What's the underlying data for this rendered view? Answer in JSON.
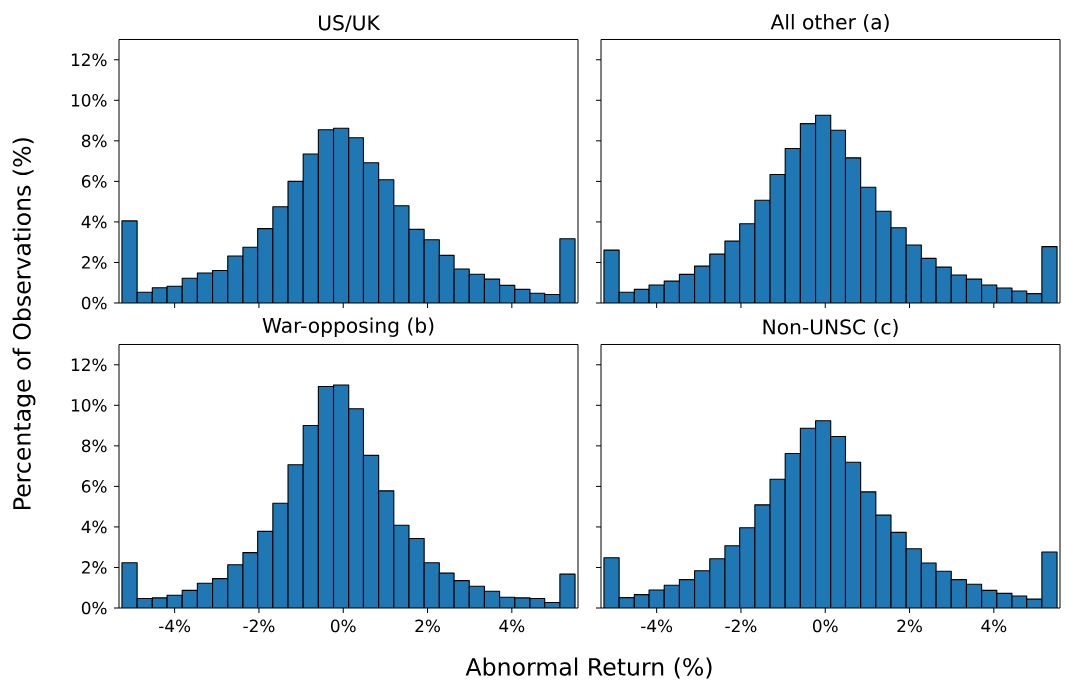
{
  "chart_data": [
    {
      "type": "histogram",
      "title": "US/UK",
      "ylabel": "Percentage of Observations (%)",
      "bins": [
        -5.25,
        -4.89,
        -4.53,
        -4.18,
        -3.82,
        -3.46,
        -3.1,
        -2.74,
        -2.38,
        -2.03,
        -1.67,
        -1.31,
        -0.95,
        -0.59,
        -0.23,
        0.13,
        0.48,
        0.84,
        1.2,
        1.56,
        1.92,
        2.28,
        2.63,
        2.99,
        3.35,
        3.71,
        4.07,
        4.43,
        4.78,
        5.14,
        5.5
      ],
      "values": [
        4.05,
        0.53,
        0.75,
        0.83,
        1.22,
        1.48,
        1.6,
        2.32,
        2.75,
        3.67,
        4.75,
        6.0,
        7.35,
        8.55,
        8.62,
        8.15,
        6.92,
        6.08,
        4.8,
        3.63,
        3.12,
        2.35,
        1.68,
        1.42,
        1.18,
        0.87,
        0.67,
        0.48,
        0.42,
        3.17
      ],
      "color": "#1f77b4",
      "xlim": [
        -5.32,
        5.57
      ],
      "xticks": [
        -4,
        -2,
        0,
        2,
        4
      ],
      "ylim": [
        0,
        13
      ],
      "yticks": [
        {
          "value": 0,
          "label": "0%"
        },
        {
          "value": 2,
          "label": "2%"
        },
        {
          "value": 4,
          "label": "4%"
        },
        {
          "value": 6,
          "label": "6%"
        },
        {
          "value": 8,
          "label": "8%"
        },
        {
          "value": 10,
          "label": "10%"
        },
        {
          "value": 12,
          "label": "12%"
        }
      ],
      "tick_labels": "y"
    },
    {
      "type": "histogram",
      "title": "All other (a)",
      "bins": [
        -5.25,
        -4.89,
        -4.53,
        -4.18,
        -3.82,
        -3.46,
        -3.1,
        -2.74,
        -2.38,
        -2.03,
        -1.67,
        -1.31,
        -0.95,
        -0.59,
        -0.23,
        0.13,
        0.48,
        0.84,
        1.2,
        1.56,
        1.92,
        2.28,
        2.63,
        2.99,
        3.35,
        3.71,
        4.07,
        4.43,
        4.78,
        5.14,
        5.5
      ],
      "values": [
        2.61,
        0.53,
        0.67,
        0.89,
        1.08,
        1.41,
        1.82,
        2.41,
        3.05,
        3.91,
        5.07,
        6.34,
        7.62,
        8.85,
        9.26,
        8.52,
        7.16,
        5.71,
        4.53,
        3.71,
        2.86,
        2.2,
        1.77,
        1.38,
        1.18,
        0.89,
        0.74,
        0.59,
        0.46,
        2.78
      ],
      "color": "#1f77b4",
      "xlim": [
        -5.32,
        5.57
      ],
      "xticks": [
        -4,
        -2,
        0,
        2,
        4
      ],
      "ylim": [
        0,
        13
      ],
      "yticks": [
        0,
        2,
        4,
        6,
        8,
        10,
        12
      ],
      "tick_labels": false
    },
    {
      "type": "histogram",
      "title": "War-opposing (b)",
      "xlabel": "Abnormal Return (%)",
      "bins": [
        -5.25,
        -4.89,
        -4.53,
        -4.18,
        -3.82,
        -3.46,
        -3.1,
        -2.74,
        -2.38,
        -2.03,
        -1.67,
        -1.31,
        -0.95,
        -0.59,
        -0.23,
        0.13,
        0.48,
        0.84,
        1.2,
        1.56,
        1.92,
        2.28,
        2.63,
        2.99,
        3.35,
        3.71,
        4.07,
        4.43,
        4.78,
        5.14,
        5.5
      ],
      "values": [
        2.23,
        0.47,
        0.5,
        0.63,
        0.87,
        1.22,
        1.45,
        2.13,
        2.73,
        3.78,
        5.17,
        7.07,
        9.0,
        10.93,
        11.0,
        9.83,
        7.53,
        5.78,
        4.08,
        3.43,
        2.23,
        1.72,
        1.35,
        1.07,
        0.83,
        0.53,
        0.5,
        0.47,
        0.27,
        1.67
      ],
      "color": "#1f77b4",
      "xlim": [
        -5.32,
        5.57
      ],
      "xticks": [
        {
          "value": -4,
          "label": "-4%"
        },
        {
          "value": -2,
          "label": "-2%"
        },
        {
          "value": 0,
          "label": "0%"
        },
        {
          "value": 2,
          "label": "2%"
        },
        {
          "value": 4,
          "label": "4%"
        }
      ],
      "ylim": [
        0,
        13
      ],
      "yticks": [
        {
          "value": 0,
          "label": "0%"
        },
        {
          "value": 2,
          "label": "2%"
        },
        {
          "value": 4,
          "label": "4%"
        },
        {
          "value": 6,
          "label": "6%"
        },
        {
          "value": 8,
          "label": "8%"
        },
        {
          "value": 10,
          "label": "10%"
        },
        {
          "value": 12,
          "label": "12%"
        }
      ]
    },
    {
      "type": "histogram",
      "title": "Non-UNSC (c)",
      "bins": [
        -5.25,
        -4.89,
        -4.53,
        -4.18,
        -3.82,
        -3.46,
        -3.1,
        -2.74,
        -2.38,
        -2.03,
        -1.67,
        -1.31,
        -0.95,
        -0.59,
        -0.23,
        0.13,
        0.48,
        0.84,
        1.2,
        1.56,
        1.92,
        2.28,
        2.63,
        2.99,
        3.35,
        3.71,
        4.07,
        4.43,
        4.78,
        5.14,
        5.5
      ],
      "values": [
        2.48,
        0.51,
        0.66,
        0.89,
        1.12,
        1.4,
        1.84,
        2.43,
        3.07,
        3.96,
        5.09,
        6.35,
        7.62,
        8.87,
        9.24,
        8.46,
        7.19,
        5.73,
        4.58,
        3.73,
        2.92,
        2.22,
        1.81,
        1.4,
        1.17,
        0.87,
        0.72,
        0.59,
        0.44,
        2.76
      ],
      "color": "#1f77b4",
      "xlim": [
        -5.32,
        5.57
      ],
      "xticks": [
        {
          "value": -4,
          "label": "-4%"
        },
        {
          "value": -2,
          "label": "-2%"
        },
        {
          "value": 0,
          "label": "0%"
        },
        {
          "value": 2,
          "label": "2%"
        },
        {
          "value": 4,
          "label": "4%"
        }
      ],
      "ylim": [
        0,
        13
      ],
      "yticks": [
        0,
        2,
        4,
        6,
        8,
        10,
        12
      ],
      "tick_labels": "x"
    }
  ]
}
